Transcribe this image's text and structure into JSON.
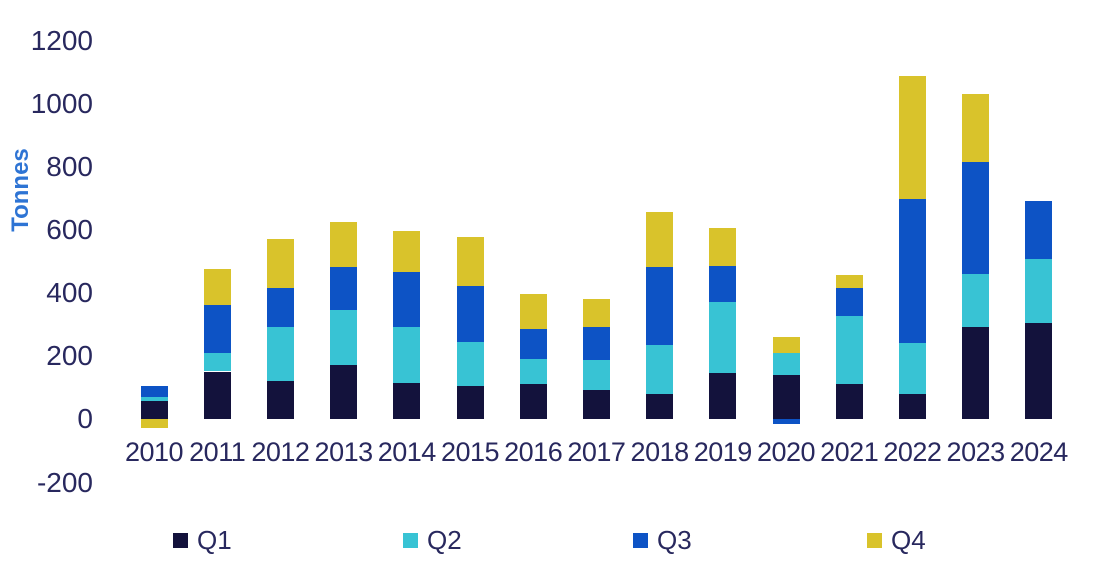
{
  "chart_data": {
    "type": "bar",
    "stacked": true,
    "title": "",
    "xlabel": "",
    "ylabel": "Tonnes",
    "grid": false,
    "legend_position": "bottom",
    "ylim": [
      -200,
      1200
    ],
    "y_ticks": [
      1200,
      1000,
      800,
      600,
      400,
      200,
      0,
      -200
    ],
    "categories": [
      "2010",
      "2011",
      "2012",
      "2013",
      "2014",
      "2015",
      "2016",
      "2017",
      "2018",
      "2019",
      "2020",
      "2021",
      "2022",
      "2023",
      "2024"
    ],
    "series": [
      {
        "name": "Q1",
        "color": "#13123c",
        "values": [
          55,
          150,
          120,
          170,
          115,
          105,
          110,
          90,
          80,
          145,
          140,
          110,
          80,
          290,
          305
        ]
      },
      {
        "name": "Q2",
        "color": "#38c3d4",
        "values": [
          15,
          60,
          170,
          175,
          175,
          140,
          80,
          95,
          155,
          225,
          70,
          215,
          160,
          170,
          200
        ]
      },
      {
        "name": "Q3",
        "color": "#0d53c5",
        "values": [
          35,
          150,
          125,
          135,
          175,
          175,
          95,
          105,
          245,
          115,
          -15,
          90,
          455,
          355,
          185
        ]
      },
      {
        "name": "Q4",
        "color": "#d9c32b",
        "values": [
          -30,
          115,
          155,
          145,
          130,
          155,
          110,
          90,
          175,
          120,
          50,
          40,
          390,
          215,
          0
        ]
      }
    ],
    "colors": {
      "axis_text": "#28285e",
      "ylabel_text": "#2e74d4",
      "background": "#ffffff"
    }
  }
}
